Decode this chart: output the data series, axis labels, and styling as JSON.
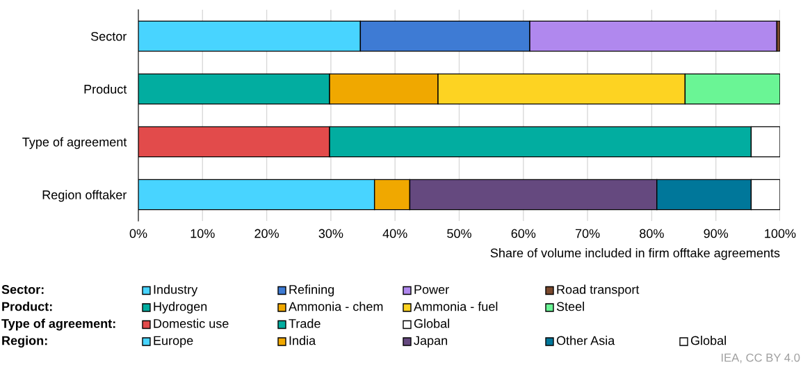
{
  "chart_data": {
    "type": "bar",
    "orientation": "horizontal",
    "stacked": true,
    "categories": [
      "Sector",
      "Product",
      "Type of agreement",
      "Region offtaker"
    ],
    "xlabel": "Share of volume included in firm offtake agreements",
    "xlim": [
      0,
      100
    ],
    "xticks": [
      {
        "value": 0,
        "label": "0%"
      },
      {
        "value": 10,
        "label": "10%"
      },
      {
        "value": 20,
        "label": "20%"
      },
      {
        "value": 30,
        "label": "30%"
      },
      {
        "value": 40,
        "label": "40%"
      },
      {
        "value": 50,
        "label": "50%"
      },
      {
        "value": 60,
        "label": "60%"
      },
      {
        "value": 70,
        "label": "70%"
      },
      {
        "value": 80,
        "label": "80%"
      },
      {
        "value": 90,
        "label": "90%"
      },
      {
        "value": 100,
        "label": "100%"
      }
    ],
    "grid": "x",
    "legend": "bottom",
    "annotations": [
      "Sector:",
      "Product:",
      "Type of agreement:",
      "Region:",
      "IEA, CC BY 4.0"
    ],
    "series": [
      {
        "name": "Industry",
        "color": "#48d4ff",
        "values": [
          34.6,
          null,
          null,
          null
        ]
      },
      {
        "name": "Refining",
        "color": "#3e7bd4",
        "values": [
          26.4,
          null,
          null,
          null
        ]
      },
      {
        "name": "Power",
        "color": "#b088ee",
        "values": [
          38.5,
          null,
          null,
          null
        ]
      },
      {
        "name": "Road transport",
        "color": "#7b4a2e",
        "values": [
          0.5,
          null,
          null,
          null
        ]
      },
      {
        "name": "Hydrogen",
        "color": "#02ada0",
        "values": [
          null,
          29.8,
          null,
          null
        ]
      },
      {
        "name": "Ammonia - chem",
        "color": "#f0a800",
        "values": [
          null,
          16.9,
          null,
          null
        ]
      },
      {
        "name": "Ammonia - fuel",
        "color": "#fdd322",
        "values": [
          null,
          38.5,
          null,
          null
        ]
      },
      {
        "name": "Steel",
        "color": "#6af595",
        "values": [
          null,
          14.8,
          null,
          null
        ]
      },
      {
        "name": "Domestic use",
        "color": "#e24b4b",
        "values": [
          null,
          null,
          29.8,
          null
        ]
      },
      {
        "name": "Trade",
        "color": "#02ada0",
        "values": [
          null,
          null,
          65.7,
          null
        ]
      },
      {
        "name": "Global",
        "color": "#ffffff",
        "values": [
          null,
          null,
          4.5,
          null
        ]
      },
      {
        "name": "Europe",
        "color": "#48d4ff",
        "values": [
          null,
          null,
          null,
          36.8
        ]
      },
      {
        "name": "India",
        "color": "#f0a800",
        "values": [
          null,
          null,
          null,
          5.5
        ]
      },
      {
        "name": "Japan",
        "color": "#65497f",
        "values": [
          null,
          null,
          null,
          38.5
        ]
      },
      {
        "name": "Other Asia",
        "color": "#00779a",
        "values": [
          null,
          null,
          null,
          14.7
        ]
      },
      {
        "name": "Global",
        "color": "#ffffff",
        "values": [
          null,
          null,
          null,
          4.5
        ]
      }
    ]
  }
}
